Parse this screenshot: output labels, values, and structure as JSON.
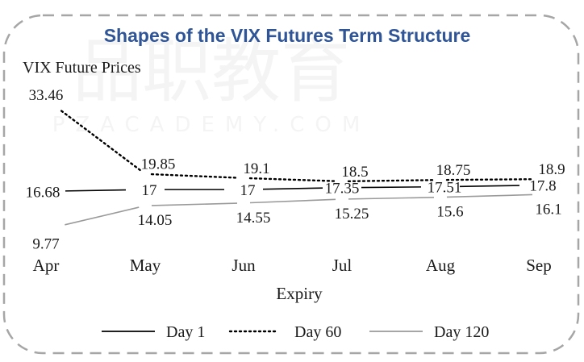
{
  "watermark": {
    "line1": "品职教育",
    "line2": "PZACADEMY.COM"
  },
  "chart_data": {
    "type": "line",
    "title": "Shapes of the VIX Futures Term Structure",
    "ylabel": "VIX Future Prices",
    "xlabel": "Expiry",
    "categories": [
      "Apr",
      "May",
      "Jun",
      "Jul",
      "Aug",
      "Sep"
    ],
    "ylim": [
      6,
      37
    ],
    "grid": false,
    "legend_position": "bottom",
    "series": [
      {
        "name": "Day 1",
        "values": [
          16.68,
          17,
          17,
          17.35,
          17.51,
          17.8
        ],
        "style": "solid",
        "color": "#000000"
      },
      {
        "name": "Day 60",
        "values": [
          33.46,
          19.85,
          19.1,
          18.5,
          18.75,
          18.9
        ],
        "style": "dotted",
        "color": "#000000"
      },
      {
        "name": "Day 120",
        "values": [
          9.77,
          14.05,
          14.55,
          15.25,
          15.6,
          16.1
        ],
        "style": "solid",
        "color": "#9a9a9a"
      }
    ]
  }
}
